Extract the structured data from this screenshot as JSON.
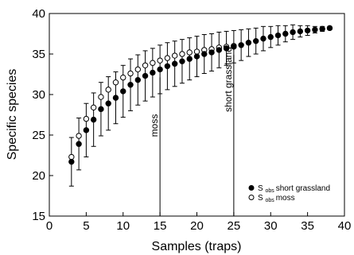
{
  "chart_data": {
    "type": "scatter",
    "xlabel": "Samples (traps)",
    "ylabel": "Specific species",
    "xlim": [
      0,
      40
    ],
    "ylim": [
      15,
      40
    ],
    "x_ticks": [
      0,
      5,
      10,
      15,
      20,
      25,
      30,
      35,
      40
    ],
    "y_ticks": [
      15,
      20,
      25,
      30,
      35,
      40
    ],
    "grid": false,
    "legend_position": "bottom-right",
    "x": [
      3,
      4,
      5,
      6,
      7,
      8,
      9,
      10,
      11,
      12,
      13,
      14,
      15,
      16,
      17,
      18,
      19,
      20,
      21,
      22,
      23,
      24,
      25,
      26,
      27,
      28,
      29,
      30,
      31,
      32,
      33,
      34,
      35,
      36,
      37,
      38
    ],
    "series": [
      {
        "name": "S obs short grassland",
        "legend_main": "S",
        "legend_sub": "obs",
        "legend_rest": "short grassland",
        "marker": "filled-circle",
        "values": [
          21.7,
          23.9,
          25.6,
          26.9,
          28.2,
          28.9,
          29.6,
          30.4,
          31.2,
          31.8,
          32.3,
          32.7,
          33.1,
          33.5,
          33.8,
          34.1,
          34.4,
          34.7,
          35.0,
          35.2,
          35.5,
          35.7,
          35.9,
          36.1,
          36.4,
          36.6,
          36.9,
          37.1,
          37.3,
          37.5,
          37.7,
          37.8,
          37.9,
          38.0,
          38.1,
          38.2
        ],
        "error": [
          3.0,
          3.2,
          3.3,
          3.3,
          3.3,
          3.3,
          3.2,
          3.2,
          3.2,
          3.1,
          3.1,
          3.0,
          3.0,
          2.9,
          2.8,
          2.7,
          2.6,
          2.5,
          2.4,
          2.3,
          2.2,
          2.1,
          2.0,
          1.9,
          1.7,
          1.6,
          1.5,
          1.3,
          1.2,
          1.0,
          0.9,
          0.7,
          0.6,
          0.4,
          0.3,
          0.2
        ]
      },
      {
        "name": "S obs moss",
        "legend_main": "S",
        "legend_sub": "obs",
        "legend_rest": "moss",
        "marker": "open-circle",
        "values": [
          22.3,
          24.9,
          27.0,
          28.4,
          29.7,
          30.6,
          31.5,
          32.1,
          32.6,
          33.1,
          33.6,
          33.9,
          34.2,
          34.5,
          34.8,
          35.0,
          35.2,
          35.3,
          35.5,
          35.6,
          35.8,
          35.9,
          36.0
        ]
      }
    ],
    "vertical_lines": [
      {
        "x": 15,
        "label": "moss"
      },
      {
        "x": 25,
        "label": "short grassland"
      }
    ]
  }
}
